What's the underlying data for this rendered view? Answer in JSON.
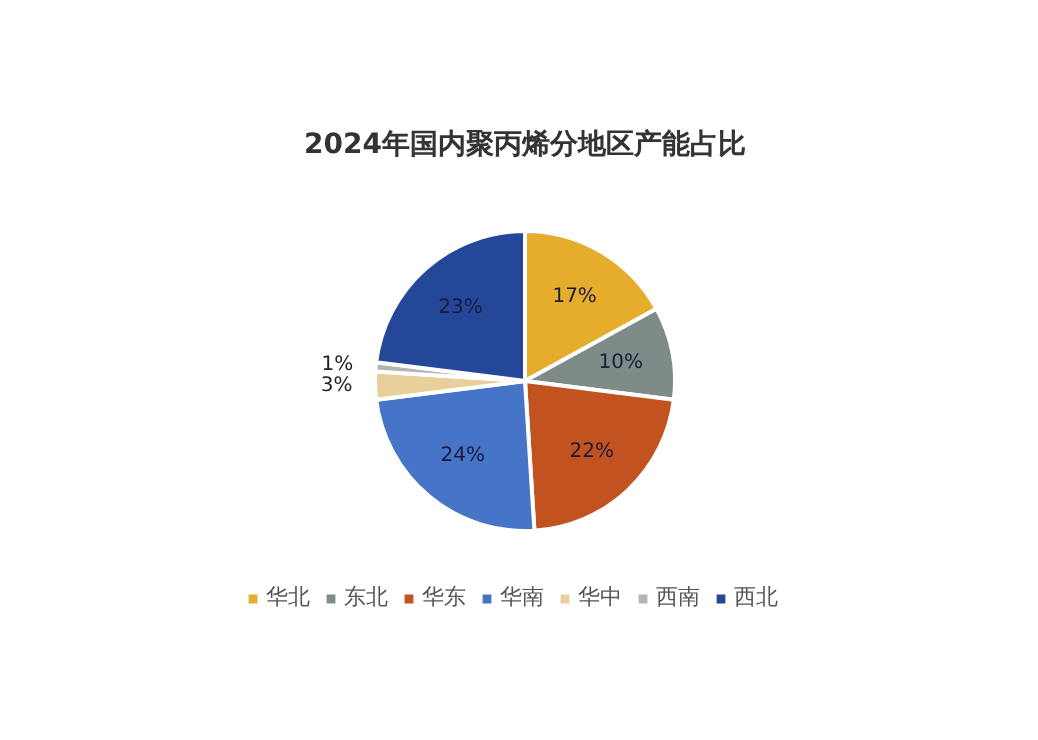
{
  "chart_data": {
    "type": "pie",
    "title": "2024年国内聚丙烯分地区产能占比",
    "categories": [
      "华北",
      "东北",
      "华东",
      "华南",
      "华中",
      "西南",
      "西北"
    ],
    "values": [
      17,
      10,
      22,
      24,
      3,
      1,
      23
    ],
    "colors": [
      "#e6ac2c",
      "#7f8b89",
      "#c25220",
      "#4674c6",
      "#e8cf9c",
      "#b4b4b4",
      "#25479a"
    ],
    "value_labels": [
      "17%",
      "10%",
      "22%",
      "24%",
      "3%",
      "1%",
      "23%"
    ],
    "legend": "bottom"
  }
}
